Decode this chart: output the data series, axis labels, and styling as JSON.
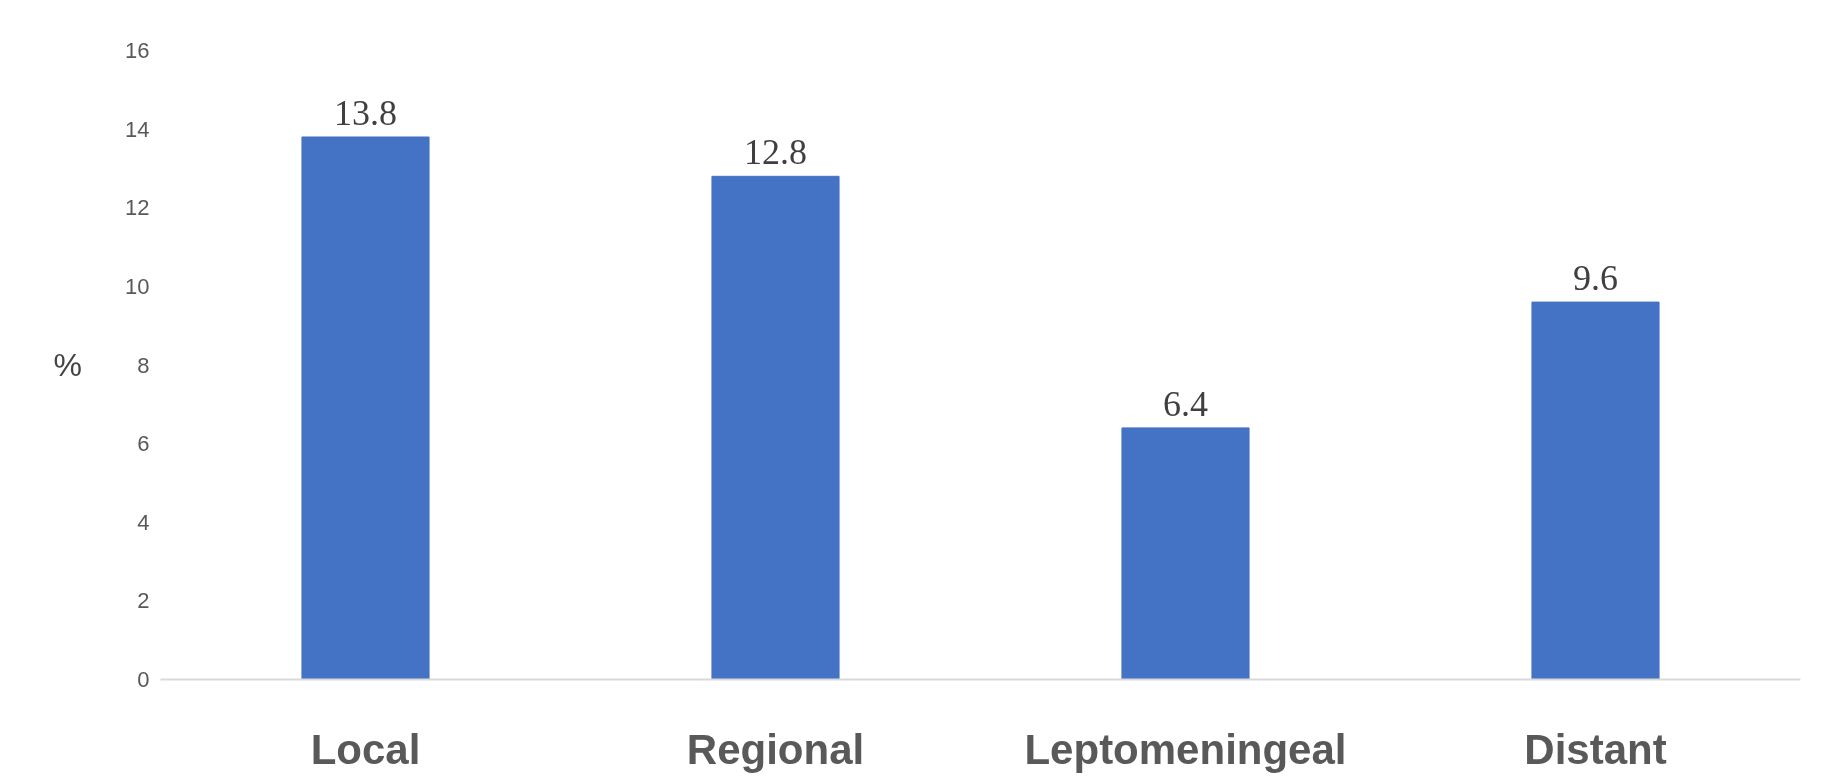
{
  "chart_data": {
    "type": "bar",
    "ylabel": "%",
    "categories": [
      "Local",
      "Regional",
      "Leptomeningeal",
      "Distant"
    ],
    "values": [
      13.8,
      12.8,
      6.4,
      9.6
    ],
    "color": "#4472c4",
    "ylim": [
      0,
      16
    ],
    "yticks": [
      0,
      2,
      4,
      6,
      8,
      10,
      12,
      14,
      16
    ],
    "grid": false,
    "data_labels": true
  }
}
